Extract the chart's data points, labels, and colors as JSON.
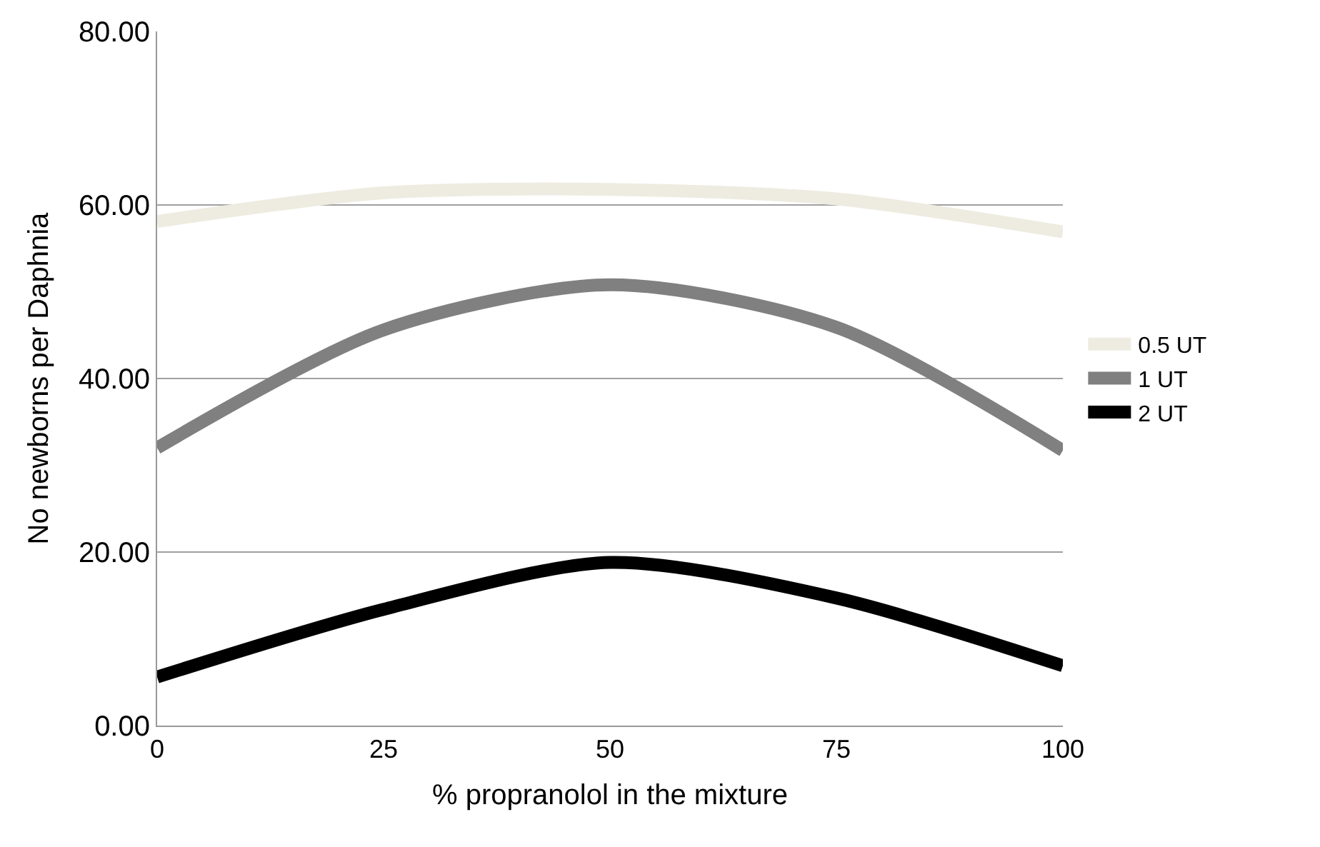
{
  "chart_data": {
    "type": "line",
    "xlabel": "% propranolol in the mixture",
    "ylabel": "No newborns per Daphnia",
    "x": [
      0,
      25,
      50,
      75,
      100
    ],
    "series": [
      {
        "name": "0.5 UT",
        "color": "#eeece1",
        "values": [
          58.1,
          61.4,
          61.8,
          60.7,
          56.9
        ]
      },
      {
        "name": "1 UT",
        "color": "#808080",
        "values": [
          32.0,
          45.6,
          50.8,
          45.9,
          31.7
        ]
      },
      {
        "name": "2 UT",
        "color": "#000000",
        "values": [
          5.6,
          13.4,
          18.8,
          14.7,
          6.9
        ]
      }
    ],
    "xlim": [
      0,
      100
    ],
    "xticks": [
      0,
      25,
      50,
      75,
      100
    ],
    "ylim": [
      0,
      80
    ],
    "yticks": [
      {
        "value": 0,
        "label": "0.00"
      },
      {
        "value": 20,
        "label": "20.00"
      },
      {
        "value": 40,
        "label": "40.00"
      },
      {
        "value": 60,
        "label": "60.00"
      },
      {
        "value": 80,
        "label": "80.00"
      }
    ],
    "grid": "y",
    "legend": "right",
    "marker": "none",
    "line_style": "solid"
  }
}
